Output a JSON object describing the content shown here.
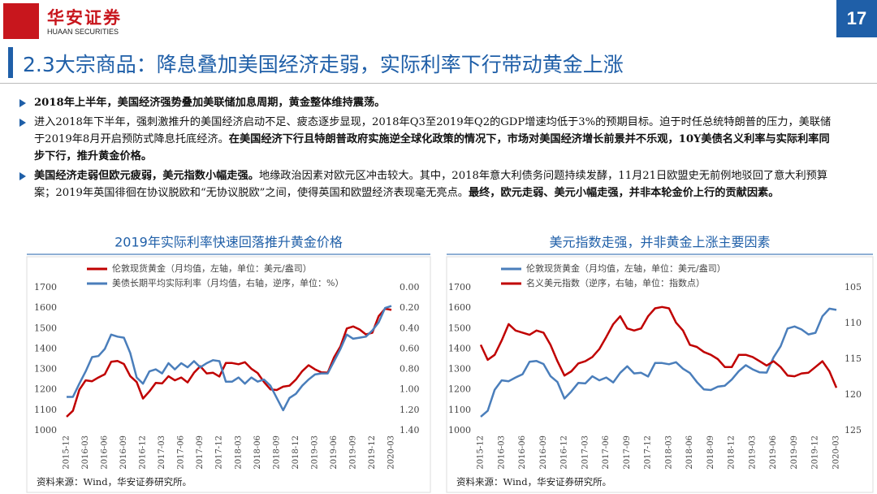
{
  "header": {
    "company": "华安证券",
    "company_en": "HUAAN SECURITIES",
    "page": "17",
    "title": "2.3大宗商品：降息叠加美国经济走弱，实际利率下行带动黄金上涨"
  },
  "bullets": [
    [
      {
        "text": "2018年上半年，美国经济强势叠加美联储加息周期，黄金整体维持震荡。",
        "bold": true
      }
    ],
    [
      {
        "text": "进入2018年下半年，强刺激推升的美国经济启动不足、疲态逐步显现，2018年Q3至2019年Q2的GDP增速均低于3%的预期目标。迫于时任总统特朗普的压力，美联储于2019年8月开启预防式降息托底经济。",
        "bold": false
      },
      {
        "text": "在美国经济下行且特朗普政府实施逆全球化政策的情况下，市场对美国经济增长前景并不乐观，10Y美债名义利率与实际利率同步下行，推升黄金价格。",
        "bold": true
      }
    ],
    [
      {
        "text": "美国经济走弱但欧元疲弱，美元指数小幅走强。",
        "bold": true
      },
      {
        "text": "地缘政治因素对欧元区冲击较大。其中，2018年意大利债务问题持续发酵，11月21日欧盟史无前例地驳回了意大利预算案；2019年英国徘徊在协议脱欧和“无协议脱欧”之间，使得英国和欧盟经济表现毫无亮点。",
        "bold": false
      },
      {
        "text": "最终，欧元走弱、美元小幅走强，并非本轮金价上行的贡献因素。",
        "bold": true
      }
    ]
  ],
  "chart_data": [
    {
      "type": "line",
      "title": "2019年实际利率快速回落推升黄金价格",
      "note": "资料来源：Wind，华安证券研究所。",
      "categories": [
        "2015-12",
        null,
        null,
        "2016-03",
        null,
        null,
        "2016-06",
        null,
        null,
        "2016-09",
        null,
        null,
        "2016-12",
        null,
        null,
        "2017-03",
        null,
        null,
        "2017-06",
        null,
        null,
        "2017-09",
        null,
        null,
        "2017-12",
        null,
        null,
        "2018-03",
        null,
        null,
        "2018-06",
        null,
        null,
        "2018-09",
        null,
        null,
        "2018-12",
        null,
        null,
        "2019-03",
        null,
        null,
        "2019-06",
        null,
        null,
        "2019-09",
        null,
        null,
        "2019-12",
        null,
        null,
        "2020-03"
      ],
      "ylim": [
        1000,
        1700
      ],
      "yticks": [
        1000,
        1100,
        1200,
        1300,
        1400,
        1500,
        1600,
        1700
      ],
      "y2lim": [
        0,
        1.4
      ],
      "y2_reversed": true,
      "y2ticks": [
        {
          "value": 0,
          "label": "0.00"
        },
        {
          "value": 0.2,
          "label": "0.20"
        },
        {
          "value": 0.4,
          "label": "0.40"
        },
        {
          "value": 0.6,
          "label": "0.60"
        },
        {
          "value": 0.8,
          "label": "0.80"
        },
        {
          "value": 1.0,
          "label": "1.00"
        },
        {
          "value": 1.2,
          "label": "1.20"
        },
        {
          "value": 1.4,
          "label": "1.40"
        }
      ],
      "series": [
        {
          "name": "伦敦现货黄金（月均值，左轴，单位：美元/盎司）",
          "color": "#c00000",
          "axis": "y",
          "values": [
            1068,
            1097,
            1200,
            1246,
            1242,
            1260,
            1276,
            1337,
            1341,
            1326,
            1267,
            1238,
            1157,
            1192,
            1234,
            1231,
            1266,
            1246,
            1260,
            1236,
            1283,
            1315,
            1280,
            1283,
            1265,
            1331,
            1331,
            1325,
            1335,
            1303,
            1282,
            1238,
            1202,
            1199,
            1215,
            1220,
            1250,
            1291,
            1320,
            1300,
            1285,
            1284,
            1359,
            1413,
            1500,
            1510,
            1495,
            1471,
            1479,
            1560,
            1597,
            1591
          ]
        },
        {
          "name": "美债长期平均实际利率（月均值，右轴，逆序，单位：%）",
          "color": "#4a7ebb",
          "axis": "y2",
          "values": [
            1.07,
            1.07,
            0.94,
            0.82,
            0.68,
            0.67,
            0.6,
            0.46,
            0.48,
            0.49,
            0.64,
            0.88,
            0.94,
            0.82,
            0.8,
            0.84,
            0.74,
            0.8,
            0.74,
            0.78,
            0.72,
            0.78,
            0.74,
            0.71,
            0.72,
            0.92,
            0.92,
            0.88,
            0.94,
            0.88,
            0.92,
            0.9,
            0.96,
            1.08,
            1.2,
            1.08,
            1.04,
            0.96,
            0.9,
            0.85,
            0.84,
            0.84,
            0.72,
            0.6,
            0.46,
            0.5,
            0.49,
            0.48,
            0.42,
            0.34,
            0.2,
            0.18
          ]
        }
      ]
    },
    {
      "type": "line",
      "title": "美元指数走强，并非黄金上涨主要因素",
      "note": "资料来源：Wind，华安证券研究所。",
      "categories": [
        "2015-12",
        null,
        null,
        "2016-03",
        null,
        null,
        "2016-06",
        null,
        null,
        "2016-09",
        null,
        null,
        "2016-12",
        null,
        null,
        "2017-03",
        null,
        null,
        "2017-06",
        null,
        null,
        "2017-09",
        null,
        null,
        "2017-12",
        null,
        null,
        "2018-03",
        null,
        null,
        "2018-06",
        null,
        null,
        "2018-09",
        null,
        null,
        "2018-12",
        null,
        null,
        "2019-03",
        null,
        null,
        "2019-06",
        null,
        null,
        "2019-09",
        null,
        null,
        "2019-12",
        null,
        null,
        "2020-03"
      ],
      "ylim": [
        1000,
        1700
      ],
      "yticks": [
        1000,
        1100,
        1200,
        1300,
        1400,
        1500,
        1600,
        1700
      ],
      "y2lim": [
        105,
        125
      ],
      "y2_reversed": true,
      "y2ticks": [
        105,
        110,
        115,
        120,
        125
      ],
      "series": [
        {
          "name": "伦敦现货黄金（月均值，左轴，单位：美元/盎司）",
          "color": "#4a7ebb",
          "axis": "y",
          "values": [
            1068,
            1097,
            1200,
            1246,
            1242,
            1260,
            1276,
            1337,
            1341,
            1326,
            1267,
            1238,
            1157,
            1192,
            1234,
            1231,
            1266,
            1246,
            1260,
            1236,
            1283,
            1315,
            1280,
            1283,
            1265,
            1331,
            1331,
            1325,
            1335,
            1303,
            1282,
            1238,
            1202,
            1199,
            1215,
            1220,
            1250,
            1291,
            1320,
            1300,
            1285,
            1284,
            1359,
            1413,
            1500,
            1510,
            1495,
            1471,
            1479,
            1560,
            1597,
            1591
          ]
        },
        {
          "name": "名义美元指数（逆序，右轴，单位：指数点）",
          "color": "#c00000",
          "axis": "y2",
          "values": [
            113.0,
            115.1,
            114.4,
            112.4,
            110.1,
            111.0,
            111.3,
            111.6,
            111.0,
            111.3,
            113.0,
            115.3,
            117.3,
            116.7,
            115.6,
            115.3,
            114.7,
            113.6,
            111.9,
            110.1,
            109.0,
            110.7,
            111.0,
            110.7,
            109.0,
            107.9,
            107.7,
            107.9,
            109.9,
            111.0,
            113.0,
            113.3,
            114.0,
            114.4,
            115.0,
            116.1,
            116.1,
            114.4,
            114.4,
            114.7,
            115.3,
            115.9,
            115.3,
            116.1,
            117.3,
            117.4,
            117.0,
            116.9,
            116.1,
            115.3,
            116.7,
            119.0
          ]
        }
      ]
    }
  ]
}
